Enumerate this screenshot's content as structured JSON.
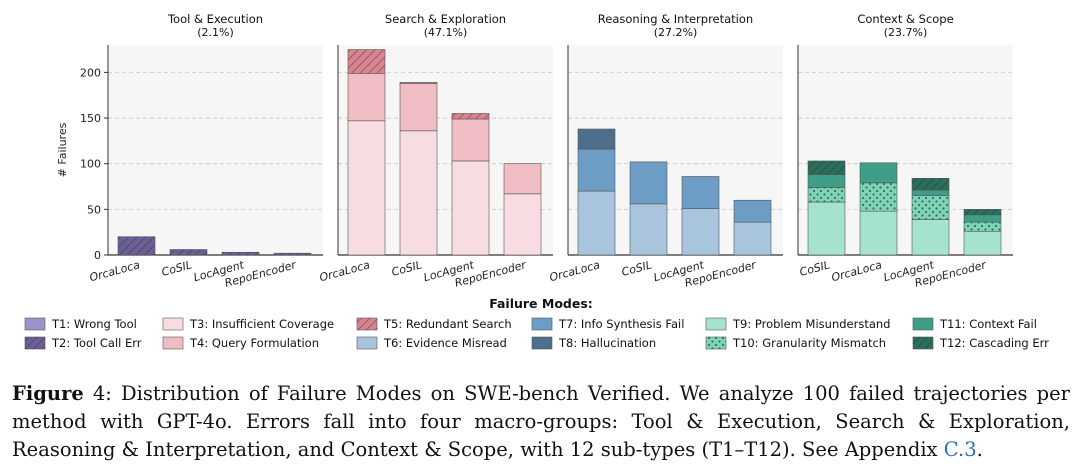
{
  "chart_data": {
    "type": "bar",
    "stacked": true,
    "ylabel": "# Failures",
    "ylim": [
      0,
      230
    ],
    "yticks": [
      0,
      50,
      100,
      150,
      200
    ],
    "grid": "horizontal-dashed",
    "panels": [
      {
        "title": "Tool & Execution",
        "subtitle": "(2.1%)",
        "categories": [
          "OrcaLoca",
          "CoSIL",
          "LocAgent",
          "RepoEncoder"
        ],
        "series": [
          {
            "name": "T1: Wrong Tool",
            "values": [
              0,
              0,
              0,
              0
            ]
          },
          {
            "name": "T2: Tool Call Err",
            "values": [
              20,
              6,
              3,
              2
            ]
          }
        ]
      },
      {
        "title": "Search & Exploration",
        "subtitle": "(47.1%)",
        "categories": [
          "OrcaLoca",
          "CoSIL",
          "LocAgent",
          "RepoEncoder"
        ],
        "series": [
          {
            "name": "T3: Insufficient Coverage",
            "values": [
              147,
              136,
              103,
              67
            ]
          },
          {
            "name": "T4: Query Formulation",
            "values": [
              52,
              52,
              46,
              33
            ]
          },
          {
            "name": "T5: Redundant Search",
            "values": [
              26,
              1,
              6,
              0
            ]
          }
        ]
      },
      {
        "title": "Reasoning & Interpretation",
        "subtitle": "(27.2%)",
        "categories": [
          "OrcaLoca",
          "CoSIL",
          "LocAgent",
          "RepoEncoder"
        ],
        "series": [
          {
            "name": "T6: Evidence Misread",
            "values": [
              70,
              56,
              51,
              36
            ]
          },
          {
            "name": "T7: Info Synthesis Fail",
            "values": [
              46,
              46,
              35,
              24
            ]
          },
          {
            "name": "T8: Hallucination",
            "values": [
              22,
              0,
              0,
              0
            ]
          }
        ]
      },
      {
        "title": "Context & Scope",
        "subtitle": "(23.7%)",
        "categories": [
          "CoSIL",
          "OrcaLoca",
          "LocAgent",
          "RepoEncoder"
        ],
        "series": [
          {
            "name": "T9: Problem Misunderstand",
            "values": [
              58,
              48,
              39,
              26
            ]
          },
          {
            "name": "T10: Granularity Mismatch",
            "values": [
              16,
              31,
              26,
              10
            ]
          },
          {
            "name": "T11: Context Fail",
            "values": [
              14,
              22,
              6,
              8
            ]
          },
          {
            "name": "T12: Cascading Err",
            "values": [
              15,
              0,
              13,
              6
            ]
          }
        ]
      }
    ],
    "legend_title": "Failure Modes:",
    "legend": [
      {
        "name": "T1: Wrong Tool",
        "color": "#9f92c9",
        "pattern": "none"
      },
      {
        "name": "T2: Tool Call Err",
        "color": "#6c5f98",
        "pattern": "hatch"
      },
      {
        "name": "T3: Insufficient Coverage",
        "color": "#f7dde1",
        "pattern": "none"
      },
      {
        "name": "T4: Query Formulation",
        "color": "#efbdc3",
        "pattern": "none"
      },
      {
        "name": "T5: Redundant Search",
        "color": "#d9858f",
        "pattern": "hatch"
      },
      {
        "name": "T6: Evidence Misread",
        "color": "#a8c5dd",
        "pattern": "none"
      },
      {
        "name": "T7: Info Synthesis Fail",
        "color": "#6d9dc4",
        "pattern": "none"
      },
      {
        "name": "T8: Hallucination",
        "color": "#4d6f8b",
        "pattern": "none"
      },
      {
        "name": "T9: Problem Misunderstand",
        "color": "#a6e3ce",
        "pattern": "none"
      },
      {
        "name": "T10: Granularity Mismatch",
        "color": "#7fd4b8",
        "pattern": "dots"
      },
      {
        "name": "T11: Context Fail",
        "color": "#3f9e88",
        "pattern": "none"
      },
      {
        "name": "T12: Cascading Err",
        "color": "#2b6e5c",
        "pattern": "hatch"
      }
    ]
  },
  "caption": {
    "label": "Figure",
    "number": "4:",
    "text": "Distribution of Failure Modes on SWE-bench Verified. We analyze 100 failed trajectories per method with GPT-4o. Errors fall into four macro-groups: Tool & Execution, Search & Exploration, Reasoning & Interpretation, and Context & Scope, with 12 sub-types (T1–T12). See Appendix",
    "link": "C.3",
    "end": "."
  }
}
